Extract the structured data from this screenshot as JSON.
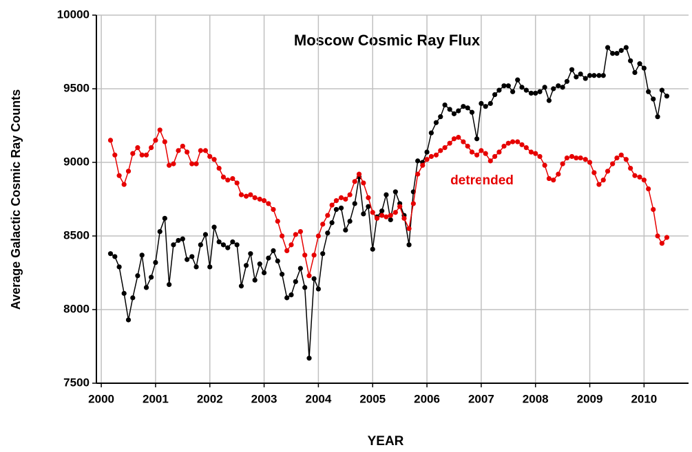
{
  "chart_data": {
    "type": "line",
    "title": "Moscow Cosmic Ray Flux",
    "annotations": [
      "detrended"
    ],
    "xlabel": "YEAR",
    "ylabel": "Average Galactic Cosmic Ray Counts",
    "x": [
      2000.17,
      2000.25,
      2000.33,
      2000.42,
      2000.5,
      2000.58,
      2000.67,
      2000.75,
      2000.83,
      2000.92,
      2001,
      2001.08,
      2001.17,
      2001.25,
      2001.33,
      2001.42,
      2001.5,
      2001.58,
      2001.67,
      2001.75,
      2001.83,
      2001.92,
      2002,
      2002.08,
      2002.17,
      2002.25,
      2002.33,
      2002.42,
      2002.5,
      2002.58,
      2002.67,
      2002.75,
      2002.83,
      2002.92,
      2003,
      2003.08,
      2003.17,
      2003.25,
      2003.33,
      2003.42,
      2003.5,
      2003.58,
      2003.67,
      2003.75,
      2003.83,
      2003.92,
      2004,
      2004.08,
      2004.17,
      2004.25,
      2004.33,
      2004.42,
      2004.5,
      2004.58,
      2004.67,
      2004.75,
      2004.83,
      2004.92,
      2005,
      2005.08,
      2005.17,
      2005.25,
      2005.33,
      2005.42,
      2005.5,
      2005.58,
      2005.67,
      2005.75,
      2005.83,
      2005.92,
      2006,
      2006.08,
      2006.17,
      2006.25,
      2006.33,
      2006.42,
      2006.5,
      2006.58,
      2006.67,
      2006.75,
      2006.83,
      2006.92,
      2007,
      2007.08,
      2007.17,
      2007.25,
      2007.33,
      2007.42,
      2007.5,
      2007.58,
      2007.67,
      2007.75,
      2007.83,
      2007.92,
      2008,
      2008.08,
      2008.17,
      2008.25,
      2008.33,
      2008.42,
      2008.5,
      2008.58,
      2008.67,
      2008.75,
      2008.83,
      2008.92,
      2009,
      2009.08,
      2009.17,
      2009.25,
      2009.33,
      2009.42,
      2009.5,
      2009.58,
      2009.67,
      2009.75,
      2009.83,
      2009.92,
      2010,
      2010.08,
      2010.17,
      2010.25,
      2010.33,
      2010.42
    ],
    "series": [
      {
        "name": "Moscow",
        "color": "#000000",
        "values": [
          8380,
          8360,
          8290,
          8110,
          7930,
          8080,
          8230,
          8370,
          8150,
          8220,
          8320,
          8530,
          8620,
          8170,
          8440,
          8470,
          8480,
          8340,
          8360,
          8290,
          8440,
          8510,
          8290,
          8560,
          8460,
          8440,
          8420,
          8460,
          8440,
          8160,
          8300,
          8380,
          8200,
          8310,
          8250,
          8350,
          8400,
          8330,
          8240,
          8080,
          8100,
          8190,
          8280,
          8150,
          7670,
          8210,
          8140,
          8380,
          8520,
          8590,
          8680,
          8690,
          8540,
          8600,
          8720,
          8900,
          8650,
          8700,
          8410,
          8630,
          8670,
          8780,
          8610,
          8800,
          8720,
          8640,
          8440,
          8800,
          9010,
          9000,
          9070,
          9200,
          9270,
          9310,
          9390,
          9360,
          9330,
          9350,
          9380,
          9370,
          9340,
          9160,
          9400,
          9380,
          9400,
          9460,
          9490,
          9520,
          9520,
          9480,
          9560,
          9510,
          9490,
          9470,
          9470,
          9480,
          9510,
          9420,
          9500,
          9520,
          9510,
          9550,
          9630,
          9580,
          9600,
          9570,
          9590,
          9590,
          9590,
          9590,
          9780,
          9740,
          9740,
          9760,
          9780,
          9690,
          9610,
          9670,
          9640,
          9480,
          9430,
          9310,
          9490,
          9450
        ]
      },
      {
        "name": "detrended",
        "color": "#e60000",
        "values": [
          9150,
          9050,
          8910,
          8850,
          8940,
          9060,
          9100,
          9050,
          9050,
          9100,
          9150,
          9220,
          9140,
          8980,
          8990,
          9080,
          9110,
          9070,
          8990,
          8990,
          9080,
          9080,
          9040,
          9020,
          8960,
          8900,
          8880,
          8890,
          8860,
          8780,
          8770,
          8780,
          8760,
          8750,
          8740,
          8720,
          8680,
          8600,
          8500,
          8400,
          8440,
          8510,
          8530,
          8370,
          8230,
          8370,
          8500,
          8580,
          8640,
          8710,
          8740,
          8760,
          8750,
          8780,
          8870,
          8920,
          8860,
          8760,
          8660,
          8620,
          8640,
          8630,
          8640,
          8660,
          8700,
          8620,
          8550,
          8720,
          8920,
          8980,
          9020,
          9040,
          9050,
          9080,
          9100,
          9130,
          9160,
          9170,
          9140,
          9110,
          9070,
          9050,
          9080,
          9060,
          9010,
          9040,
          9070,
          9110,
          9130,
          9140,
          9140,
          9120,
          9100,
          9070,
          9060,
          9040,
          8980,
          8890,
          8880,
          8920,
          8990,
          9030,
          9040,
          9030,
          9030,
          9020,
          9000,
          8930,
          8850,
          8880,
          8940,
          8990,
          9030,
          9050,
          9020,
          8960,
          8910,
          8900,
          8880,
          8820,
          8680,
          8500,
          8450,
          8490
        ]
      }
    ],
    "xlim": [
      1999.91,
      2010.82
    ],
    "xticks": [
      2000,
      2001,
      2002,
      2003,
      2004,
      2005,
      2006,
      2007,
      2008,
      2009,
      2010
    ],
    "ylim": [
      7500,
      10000
    ],
    "yticks": [
      7500,
      8000,
      8500,
      9000,
      9500,
      10000
    ],
    "grid": true
  }
}
